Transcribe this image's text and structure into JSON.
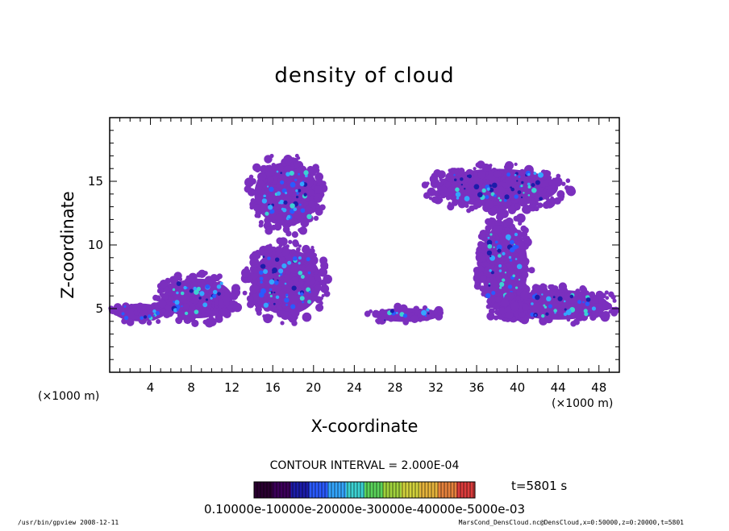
{
  "chart_data": {
    "type": "heatmap",
    "title": "density of cloud",
    "xlabel": "X-coordinate",
    "ylabel": "Z-coordinate",
    "x_unit": "(×1000 m)",
    "z_unit": "(×1000 m)",
    "xlim": [
      0,
      50
    ],
    "ylim": [
      0,
      20
    ],
    "x_ticks": [
      4,
      8,
      12,
      16,
      20,
      24,
      28,
      32,
      36,
      40,
      44,
      48
    ],
    "y_ticks": [
      5,
      10,
      15
    ],
    "contour_interval": "CONTOUR INTERVAL = 2.000E-04",
    "time_label": "t=5801  s",
    "colorbar_text": "0.10000e-10000e-20000e-30000e-40000e-5000e-03",
    "colorbar_colors": [
      "#2a0030",
      "#3d005a",
      "#1c1caa",
      "#2a5aff",
      "#34a6ff",
      "#3cd2d2",
      "#5ad25a",
      "#a0d23c",
      "#d2d23c",
      "#e6b43c",
      "#e6823c",
      "#dc3c3c"
    ],
    "cloud_color": "#7b2fbe",
    "cloud_regions": [
      {
        "name": "low layer west",
        "x": [
          0,
          6
        ],
        "z": [
          3.8,
          5.6
        ]
      },
      {
        "name": "low cloud near x=8",
        "x": [
          4.5,
          12.8
        ],
        "z": [
          3.8,
          7.8
        ]
      },
      {
        "name": "tower near x=17 lower",
        "x": [
          13.2,
          21.5
        ],
        "z": [
          3.8,
          10.4
        ]
      },
      {
        "name": "tower near x=17 upper",
        "x": [
          13.5,
          21.2
        ],
        "z": [
          10.8,
          17.2
        ]
      },
      {
        "name": "low layer near x=28",
        "x": [
          25.2,
          33
        ],
        "z": [
          3.8,
          5.2
        ]
      },
      {
        "name": "anvil near x=38",
        "x": [
          30.8,
          45.3
        ],
        "z": [
          12.6,
          16.4
        ]
      },
      {
        "name": "stem near x=38",
        "x": [
          36,
          41.5
        ],
        "z": [
          3.8,
          12.8
        ]
      },
      {
        "name": "low layer east",
        "x": [
          38,
          50
        ],
        "z": [
          3.8,
          6.8
        ]
      }
    ],
    "footer_left": "/usr/bin/gpview   2008-12-11",
    "footer_right": "MarsCond_DensCloud.nc@DensCloud,x=0:50000,z=0:20000,t=5801"
  }
}
